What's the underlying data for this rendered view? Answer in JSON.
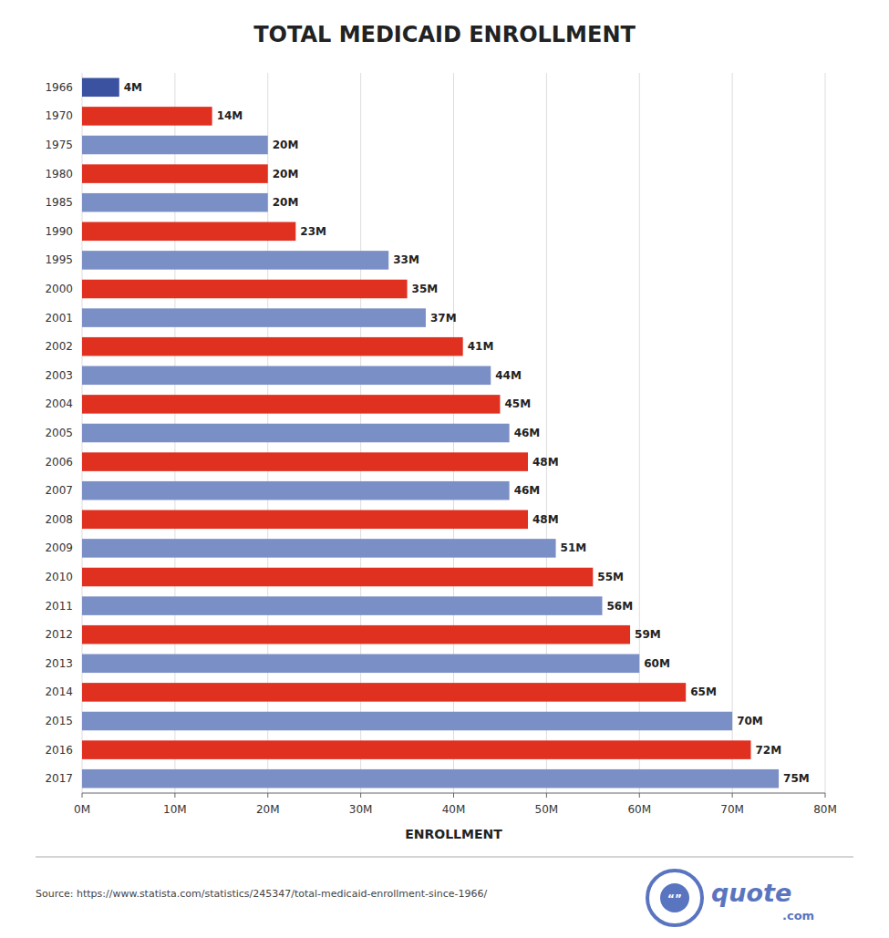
{
  "chart_data": {
    "type": "bar",
    "orientation": "horizontal",
    "title": "TOTAL MEDICAID ENROLLMENT",
    "xlabel": "ENROLLMENT",
    "categories": [
      "1966",
      "1970",
      "1975",
      "1980",
      "1985",
      "1990",
      "1995",
      "2000",
      "2001",
      "2002",
      "2003",
      "2004",
      "2005",
      "2006",
      "2007",
      "2008",
      "2009",
      "2010",
      "2011",
      "2012",
      "2013",
      "2014",
      "2015",
      "2016",
      "2017"
    ],
    "values": [
      4,
      14,
      20,
      20,
      20,
      23,
      33,
      35,
      37,
      41,
      44,
      45,
      46,
      48,
      46,
      48,
      51,
      55,
      56,
      59,
      60,
      65,
      70,
      72,
      75
    ],
    "value_labels": [
      "4M",
      "14M",
      "20M",
      "20M",
      "20M",
      "23M",
      "33M",
      "35M",
      "37M",
      "41M",
      "44M",
      "45M",
      "46M",
      "48M",
      "46M",
      "48M",
      "51M",
      "55M",
      "56M",
      "59M",
      "60M",
      "65M",
      "70M",
      "72M",
      "75M"
    ],
    "colors": [
      "#3a52a0",
      "#e03020",
      "#7b8fc7",
      "#e03020",
      "#7b8fc7",
      "#e03020",
      "#7b8fc7",
      "#e03020",
      "#7b8fc7",
      "#e03020",
      "#7b8fc7",
      "#e03020",
      "#7b8fc7",
      "#e03020",
      "#7b8fc7",
      "#e03020",
      "#7b8fc7",
      "#e03020",
      "#7b8fc7",
      "#e03020",
      "#7b8fc7",
      "#e03020",
      "#7b8fc7",
      "#e03020",
      "#7b8fc7"
    ],
    "xlim": [
      0,
      80
    ],
    "xticks": [
      {
        "value": 0,
        "label": "0M"
      },
      {
        "value": 10,
        "label": "10M"
      },
      {
        "value": 20,
        "label": "20M"
      },
      {
        "value": 30,
        "label": "30M"
      },
      {
        "value": 40,
        "label": "40M"
      },
      {
        "value": 50,
        "label": "50M"
      },
      {
        "value": 60,
        "label": "60M"
      },
      {
        "value": 70,
        "label": "70M"
      },
      {
        "value": 80,
        "label": "80M"
      }
    ],
    "grid": true,
    "data_labels": true,
    "annotations": [
      "Source: https://www.statista.com/statistics/245347/total-medicaid-enrollment-since-1966/",
      "quote",
      ".com",
      "“”"
    ]
  }
}
